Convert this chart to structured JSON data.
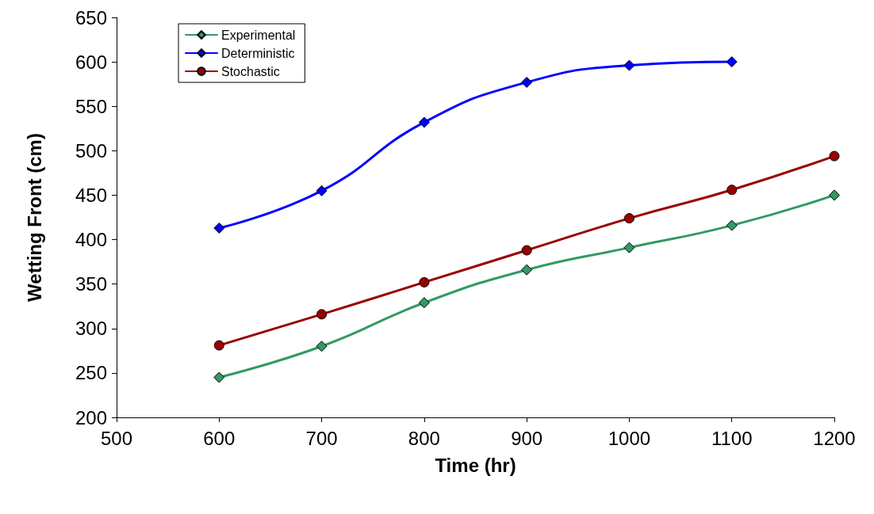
{
  "chart_data": {
    "type": "line",
    "xlabel": "Time (hr)",
    "ylabel": "Wetting Front (cm)",
    "x": [
      600,
      700,
      800,
      900,
      1000,
      1100,
      1200
    ],
    "series": [
      {
        "name": "Experimental",
        "color": "#339966",
        "marker": "diamond",
        "values": [
          245,
          280,
          329,
          366,
          391,
          416,
          450
        ]
      },
      {
        "name": "Deterministic",
        "color": "#0000ff",
        "marker": "diamond",
        "values": [
          413,
          455,
          532,
          577,
          596,
          600,
          null
        ]
      },
      {
        "name": "Stochastic",
        "color": "#990000",
        "marker": "circle",
        "values": [
          281,
          316,
          352,
          388,
          424,
          456,
          494
        ]
      }
    ],
    "xlim": [
      500,
      1200
    ],
    "xticks": [
      500,
      600,
      700,
      800,
      900,
      1000,
      1100,
      1200
    ],
    "ylim": [
      200,
      650
    ],
    "yticks": [
      200,
      250,
      300,
      350,
      400,
      450,
      500,
      550,
      600,
      650
    ],
    "grid": false,
    "legend": "top left"
  }
}
